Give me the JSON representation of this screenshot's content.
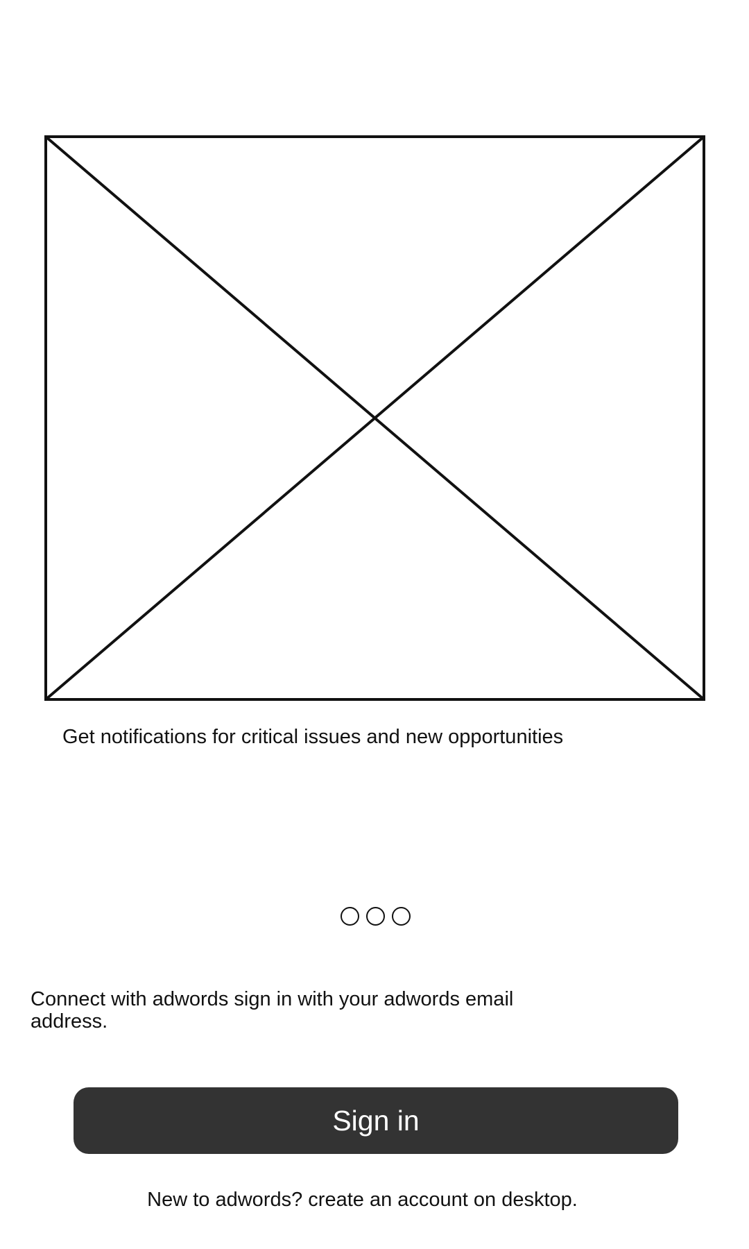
{
  "hero": {
    "image_icon": "placeholder-image-icon"
  },
  "onboarding": {
    "caption": "Get notifications for critical issues and new opportunities",
    "pager": {
      "total_pages": 3
    }
  },
  "connect": {
    "text": "Connect with adwords sign in with your adwords email address."
  },
  "actions": {
    "sign_in_label": "Sign in"
  },
  "footer": {
    "text": "New to adwords? create an account on desktop."
  },
  "colors": {
    "button_background": "#333333",
    "button_text": "#ffffff",
    "text": "#111111",
    "background": "#ffffff"
  }
}
